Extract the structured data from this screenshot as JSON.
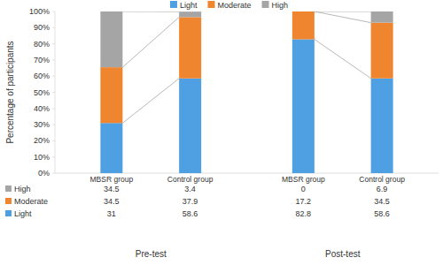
{
  "chart_data": {
    "type": "bar",
    "stacked": true,
    "grid": false,
    "legend": "top",
    "y_label": "Percentage of participants",
    "categories": [
      "MBSR group",
      "Control group",
      "MBSR group",
      "Control group"
    ],
    "annotations": [
      "Pre-test",
      "Post-test"
    ],
    "series": [
      {
        "name": "Light",
        "color": "#4f9fe3",
        "values": [
          31,
          58.6,
          82.8,
          58.6
        ]
      },
      {
        "name": "Moderate",
        "color": "#f0852f",
        "values": [
          34.5,
          37.9,
          17.2,
          34.5
        ]
      },
      {
        "name": "High",
        "color": "#a5a5a5",
        "values": [
          34.5,
          3.4,
          0,
          6.9
        ]
      }
    ],
    "ylim": [
      0,
      100
    ],
    "yticks": [
      {
        "value": 0,
        "label": "0%"
      },
      {
        "value": 10,
        "label": "10%"
      },
      {
        "value": 20,
        "label": "20%"
      },
      {
        "value": 30,
        "label": "30%"
      },
      {
        "value": 40,
        "label": "40%"
      },
      {
        "value": 50,
        "label": "50%"
      },
      {
        "value": 60,
        "label": "60%"
      },
      {
        "value": 70,
        "label": "70%"
      },
      {
        "value": 80,
        "label": "80%"
      },
      {
        "value": 90,
        "label": "90%"
      },
      {
        "value": 100,
        "label": "100%"
      }
    ]
  }
}
